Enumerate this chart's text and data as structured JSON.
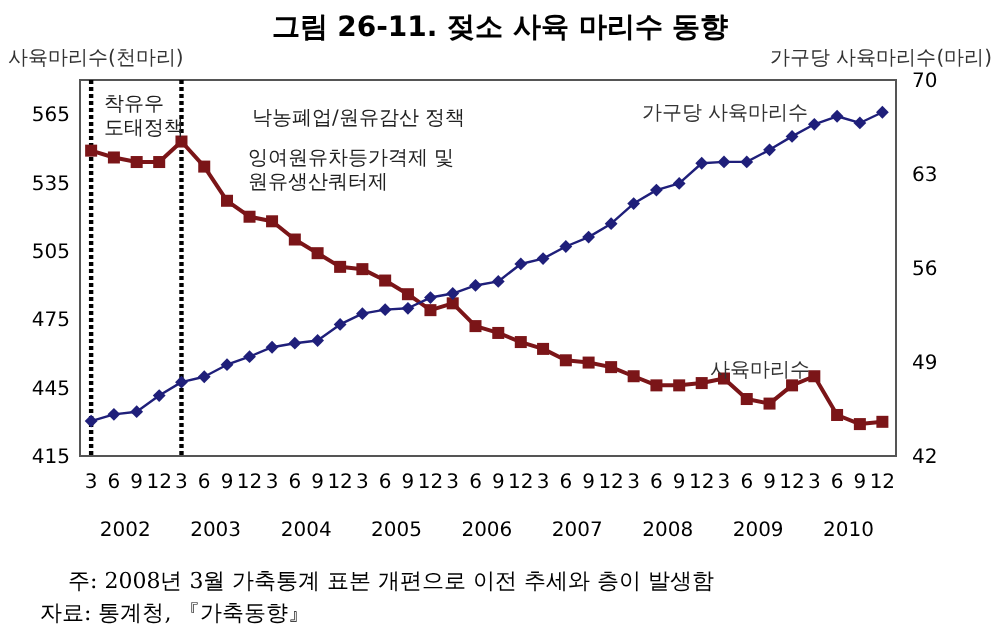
{
  "chart_data": {
    "type": "line",
    "title": "그림 26-11.  젖소 사육 마리수 동향",
    "ylabel": "사육마리수(천마리)",
    "y2label": "가구당 사육마리수(마리)",
    "x": [
      "2002-03",
      "2002-06",
      "2002-09",
      "2002-12",
      "2003-03",
      "2003-06",
      "2003-09",
      "2003-12",
      "2004-03",
      "2004-06",
      "2004-09",
      "2004-12",
      "2005-03",
      "2005-06",
      "2005-09",
      "2005-12",
      "2006-03",
      "2006-06",
      "2006-09",
      "2006-12",
      "2007-03",
      "2007-06",
      "2007-09",
      "2007-12",
      "2008-03",
      "2008-06",
      "2008-09",
      "2008-12",
      "2009-03",
      "2009-06",
      "2009-09",
      "2009-12",
      "2010-03",
      "2010-06",
      "2010-09",
      "2010-12"
    ],
    "series": [
      {
        "name": "사육마리수",
        "color": "#7b1518",
        "marker": "square",
        "values": [
          549,
          546,
          544,
          544,
          553,
          542,
          527,
          520,
          518,
          510,
          504,
          498,
          497,
          492,
          486,
          479,
          482,
          472,
          469,
          465,
          462,
          457,
          456,
          454,
          450,
          446,
          446,
          447,
          449,
          440,
          438,
          446,
          450,
          433,
          429,
          430
        ]
      },
      {
        "name": "가구당 사육마리수",
        "color": "#1f1f7a",
        "marker": "diamond",
        "axis": "y2",
        "values": [
          44.6,
          45.1,
          45.3,
          46.5,
          47.5,
          47.9,
          48.8,
          49.4,
          50.1,
          50.4,
          50.6,
          51.8,
          52.6,
          52.9,
          53.0,
          53.8,
          54.1,
          54.7,
          55.0,
          56.3,
          56.7,
          57.6,
          58.3,
          59.3,
          60.8,
          61.8,
          62.3,
          63.8,
          63.9,
          63.9,
          64.8,
          65.8,
          66.7,
          67.3,
          66.8,
          67.6
        ]
      }
    ],
    "xlim": [
      "2002-01-15",
      "2011-01-25"
    ],
    "xticks": [
      {
        "value": "2002-03",
        "label": "3"
      },
      {
        "value": "2002-06",
        "label": "6"
      },
      {
        "value": "2002-09",
        "label": "9"
      },
      {
        "value": "2002-12",
        "label": "12"
      },
      {
        "value": "2003-03",
        "label": "3"
      },
      {
        "value": "2003-06",
        "label": "6"
      },
      {
        "value": "2003-09",
        "label": "9"
      },
      {
        "value": "2003-12",
        "label": "12"
      },
      {
        "value": "2004-03",
        "label": "3"
      },
      {
        "value": "2004-06",
        "label": "6"
      },
      {
        "value": "2004-09",
        "label": "9"
      },
      {
        "value": "2004-12",
        "label": "12"
      },
      {
        "value": "2005-03",
        "label": "3"
      },
      {
        "value": "2005-06",
        "label": "6"
      },
      {
        "value": "2005-09",
        "label": "9"
      },
      {
        "value": "2005-12",
        "label": "12"
      },
      {
        "value": "2006-03",
        "label": "3"
      },
      {
        "value": "2006-06",
        "label": "6"
      },
      {
        "value": "2006-09",
        "label": "9"
      },
      {
        "value": "2006-12",
        "label": "12"
      },
      {
        "value": "2007-03",
        "label": "3"
      },
      {
        "value": "2007-06",
        "label": "6"
      },
      {
        "value": "2007-09",
        "label": "9"
      },
      {
        "value": "2007-12",
        "label": "12"
      },
      {
        "value": "2008-03",
        "label": "3"
      },
      {
        "value": "2008-06",
        "label": "6"
      },
      {
        "value": "2008-09",
        "label": "9"
      },
      {
        "value": "2008-12",
        "label": "12"
      },
      {
        "value": "2009-03",
        "label": "3"
      },
      {
        "value": "2009-06",
        "label": "6"
      },
      {
        "value": "2009-09",
        "label": "9"
      },
      {
        "value": "2009-12",
        "label": "12"
      },
      {
        "value": "2010-03",
        "label": "3"
      },
      {
        "value": "2010-06",
        "label": "6"
      },
      {
        "value": "2010-09",
        "label": "9"
      },
      {
        "value": "2010-12",
        "label": "12"
      }
    ],
    "ylim": [
      415,
      580
    ],
    "yticks": [
      415,
      445,
      475,
      505,
      535,
      565
    ],
    "y2lim": [
      42,
      70
    ],
    "y2ticks": [
      42,
      49,
      56,
      63,
      70
    ],
    "ref_lines": [
      {
        "axis": "x",
        "value": "2002-03",
        "line_style": "dotted",
        "color": "#000000"
      },
      {
        "axis": "x",
        "value": "2003-03",
        "line_style": "dotted",
        "color": "#000000"
      }
    ],
    "annotations": [
      "착유우\n도태정책",
      "낙농폐업/원유감산 정책",
      "잉여원유차등가격제 및\n원유생산쿼터제",
      "2002",
      "2003",
      "2004",
      "2005",
      "2006",
      "2007",
      "2008",
      "2009",
      "2010",
      "주: 2008년 3월 가축통계 표본 개편으로 이전 추세와 층이 발생함",
      "자료: 통계청, 『가축동향』"
    ],
    "grid": false
  }
}
